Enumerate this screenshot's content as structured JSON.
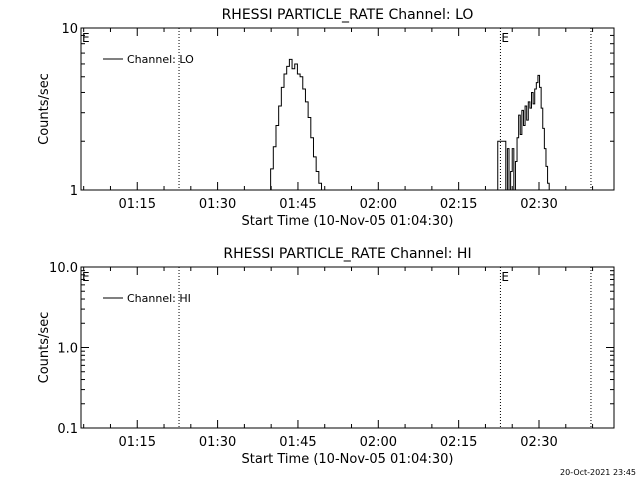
{
  "footer": {
    "timestamp": "20-Oct-2021 23:45"
  },
  "chart_data": [
    {
      "type": "line",
      "title": "RHESSI PARTICLE_RATE Channel: LO",
      "xlabel": "Start Time (10-Nov-05 01:04:30)",
      "ylabel": "Counts/sec",
      "yscale": "log",
      "ylim": [
        1,
        10
      ],
      "xlim_minutes": [
        64.5,
        164
      ],
      "x_ticks": [
        {
          "label": "01:15",
          "value": 75
        },
        {
          "label": "01:30",
          "value": 90
        },
        {
          "label": "01:45",
          "value": 105
        },
        {
          "label": "02:00",
          "value": 120
        },
        {
          "label": "02:15",
          "value": 135
        },
        {
          "label": "02:30",
          "value": 150
        }
      ],
      "y_ticks": [
        {
          "label": "1",
          "value": 1
        },
        {
          "label": "10",
          "value": 10
        }
      ],
      "eclipse_markers": [
        {
          "label": "E",
          "start": 60,
          "end": 82.8
        },
        {
          "label": "E",
          "start": 142.8,
          "end": 159.7
        }
      ],
      "legend": {
        "label": "Channel: LO",
        "position": "top-left"
      },
      "series": [
        {
          "name": "Channel: LO",
          "x": [
            99.4,
            99.9,
            100.4,
            100.9,
            101.4,
            101.9,
            102.4,
            102.9,
            103.4,
            103.9,
            104.4,
            104.9,
            105.4,
            105.9,
            106.4,
            106.9,
            107.4,
            107.9,
            108.4,
            108.9,
            109.4,
            109.9,
            110.4,
            142.3,
            143.8,
            144.1,
            144.4,
            144.7,
            145.0,
            145.3,
            145.6,
            145.9,
            146.2,
            146.5,
            146.8,
            147.1,
            147.4,
            147.7,
            148.0,
            148.3,
            148.6,
            148.9,
            149.2,
            149.5,
            149.8,
            150.1,
            150.4,
            150.7,
            151.0,
            151.3,
            151.6,
            151.9,
            152.2,
            152.5,
            152.9
          ],
          "y": [
            1,
            1.35,
            1.85,
            2.5,
            3.3,
            4.3,
            5.2,
            5.8,
            6.4,
            5.6,
            6.0,
            5.2,
            5.0,
            4.2,
            3.5,
            2.8,
            2.1,
            1.6,
            1.3,
            1.1,
            1,
            1,
            1,
            2.0,
            1,
            1.8,
            1,
            1.3,
            1.8,
            1,
            1.5,
            2.1,
            2.9,
            2.2,
            3.1,
            2.5,
            3.3,
            2.7,
            3.5,
            3.2,
            4.0,
            3.4,
            4.2,
            4.6,
            5.1,
            4.3,
            3.2,
            2.4,
            1.8,
            1.4,
            1.1,
            1,
            1,
            1,
            1
          ]
        }
      ]
    },
    {
      "type": "line",
      "title": "RHESSI PARTICLE_RATE Channel: HI",
      "xlabel": "Start Time (10-Nov-05 01:04:30)",
      "ylabel": "Counts/sec",
      "yscale": "log",
      "ylim": [
        0.1,
        10
      ],
      "xlim_minutes": [
        64.5,
        164
      ],
      "x_ticks": [
        {
          "label": "01:15",
          "value": 75
        },
        {
          "label": "01:30",
          "value": 90
        },
        {
          "label": "01:45",
          "value": 105
        },
        {
          "label": "02:00",
          "value": 120
        },
        {
          "label": "02:15",
          "value": 135
        },
        {
          "label": "02:30",
          "value": 150
        }
      ],
      "y_ticks": [
        {
          "label": "0.1",
          "value": 0.1
        },
        {
          "label": "1.0",
          "value": 1.0
        },
        {
          "label": "10.0",
          "value": 10.0
        }
      ],
      "eclipse_markers": [
        {
          "label": "E",
          "start": 60,
          "end": 82.8
        },
        {
          "label": "E",
          "start": 142.8,
          "end": 159.7
        }
      ],
      "legend": {
        "label": "Channel: HI",
        "position": "top-left"
      },
      "series": [
        {
          "name": "Channel: HI",
          "x": [],
          "y": []
        }
      ]
    }
  ]
}
